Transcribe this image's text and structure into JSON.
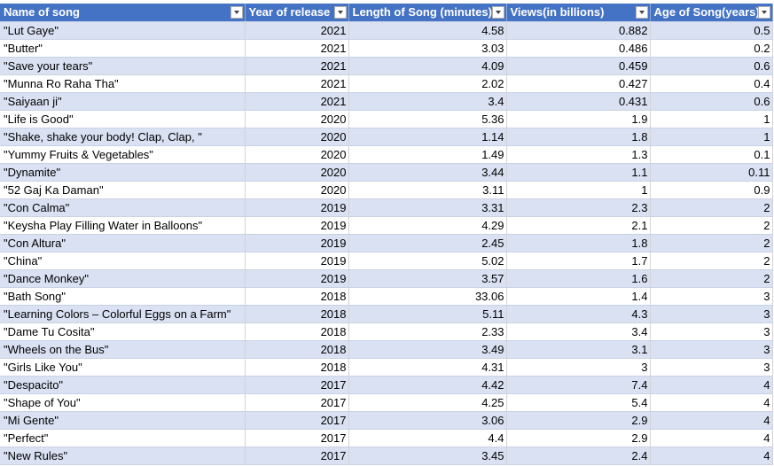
{
  "table": {
    "header": [
      "Name of song",
      "Year of release",
      "Length of Song (minutes)",
      "Views(in billions)",
      "Age of Song(years)"
    ],
    "rows": [
      [
        "\"Lut Gaye\"",
        "2021",
        "4.58",
        "0.882",
        "0.5"
      ],
      [
        "\"Butter\"",
        "2021",
        "3.03",
        "0.486",
        "0.2"
      ],
      [
        "\"Save your tears\"",
        "2021",
        "4.09",
        "0.459",
        "0.6"
      ],
      [
        "\"Munna Ro Raha Tha\"",
        "2021",
        "2.02",
        "0.427",
        "0.4"
      ],
      [
        "\"Saiyaan ji\"",
        "2021",
        "3.4",
        "0.431",
        "0.6"
      ],
      [
        "\"Life is Good\"",
        "2020",
        "5.36",
        "1.9",
        "1"
      ],
      [
        "\"Shake, shake your body! Clap, Clap, \"",
        "2020",
        "1.14",
        "1.8",
        "1"
      ],
      [
        "\"Yummy Fruits & Vegetables\"",
        "2020",
        "1.49",
        "1.3",
        "0.1"
      ],
      [
        "\"Dynamite\"",
        "2020",
        "3.44",
        "1.1",
        "0.11"
      ],
      [
        "\"52 Gaj Ka Daman\"",
        "2020",
        "3.11",
        "1",
        "0.9"
      ],
      [
        "\"Con Calma\"",
        "2019",
        "3.31",
        "2.3",
        "2"
      ],
      [
        "\"Keysha Play Filling Water in Balloons\"",
        "2019",
        "4.29",
        "2.1",
        "2"
      ],
      [
        "\"Con Altura\"",
        "2019",
        "2.45",
        "1.8",
        "2"
      ],
      [
        "\"China\"",
        "2019",
        "5.02",
        "1.7",
        "2"
      ],
      [
        "\"Dance Monkey\"",
        "2019",
        "3.57",
        "1.6",
        "2"
      ],
      [
        "\"Bath Song\"",
        "2018",
        "33.06",
        "1.4",
        "3"
      ],
      [
        "\"Learning Colors – Colorful Eggs on a Farm\"",
        "2018",
        "5.11",
        "4.3",
        "3"
      ],
      [
        "\"Dame Tu Cosita\"",
        "2018",
        "2.33",
        "3.4",
        "3"
      ],
      [
        "\"Wheels on the Bus\"",
        "2018",
        "3.49",
        "3.1",
        "3"
      ],
      [
        "\"Girls Like You\"",
        "2018",
        "4.31",
        "3",
        "3"
      ],
      [
        "\"Despacito\"",
        "2017",
        "4.42",
        "7.4",
        "4"
      ],
      [
        "\"Shape of You\"",
        "2017",
        "4.25",
        "5.4",
        "4"
      ],
      [
        "\"Mi Gente\"",
        "2017",
        "3.06",
        "2.9",
        "4"
      ],
      [
        "\"Perfect\"",
        "2017",
        "4.4",
        "2.9",
        "4"
      ],
      [
        "\"New Rules\"",
        "2017",
        "3.45",
        "2.4",
        "4"
      ]
    ]
  }
}
